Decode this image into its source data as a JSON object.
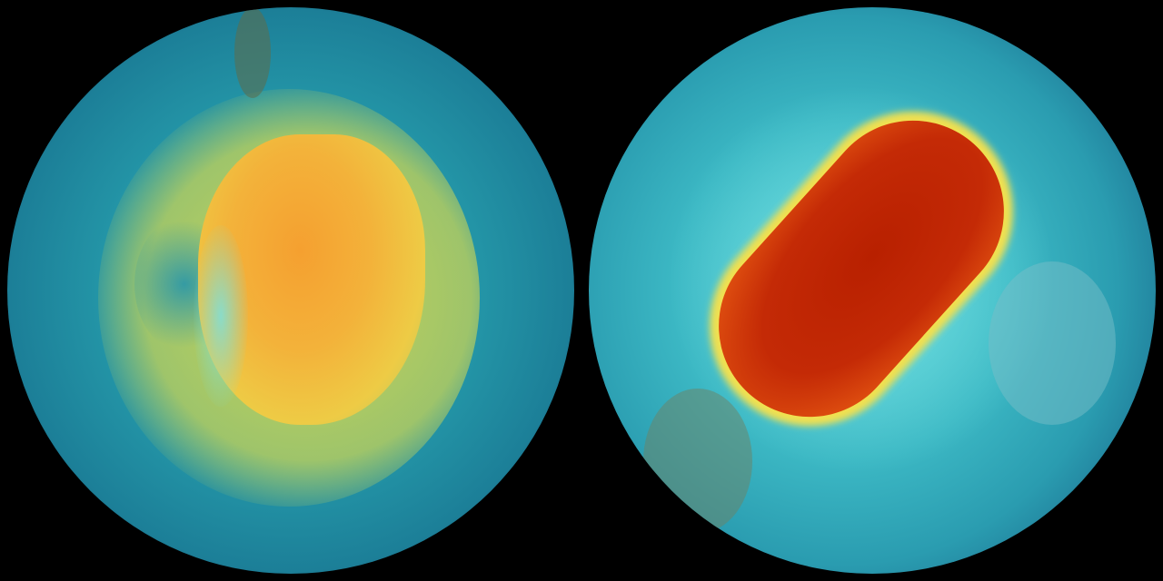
{
  "image": {
    "left_globe": {
      "icon": "globe-ozone-field-icon",
      "colors": {
        "ocean": "#2497a8",
        "outer_band": "#d8d84a",
        "core": "#f5a623"
      }
    },
    "right_globe": {
      "icon": "globe-ozone-field-icon",
      "colors": {
        "ocean": "#3cb8c4",
        "rim": "#f0e040",
        "core": "#c02a08"
      }
    }
  }
}
